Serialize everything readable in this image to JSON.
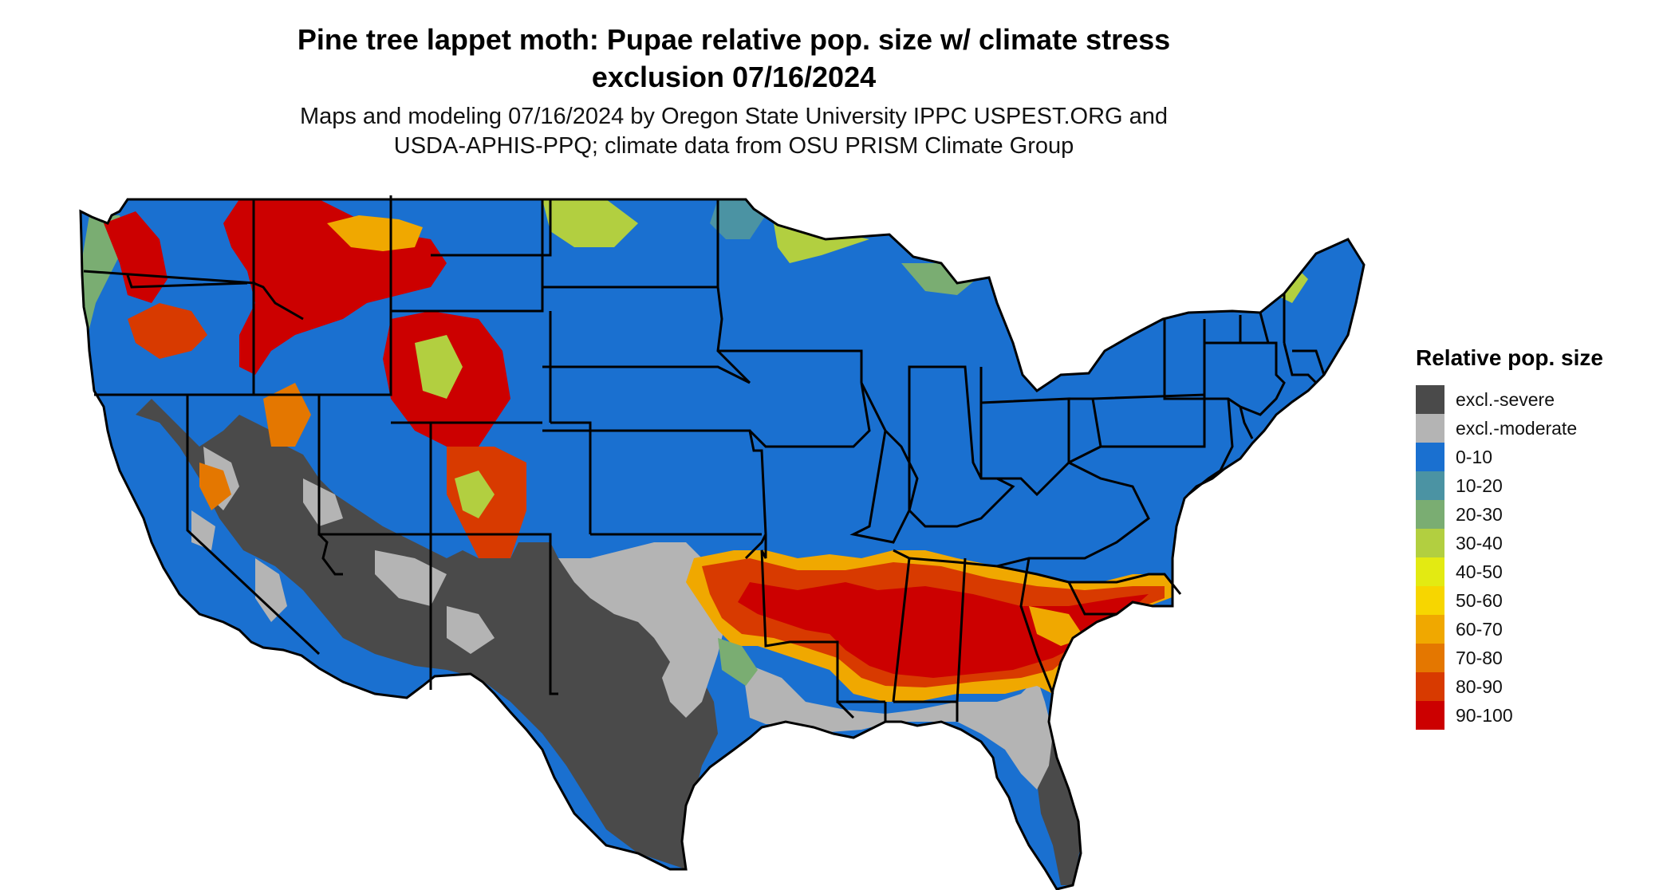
{
  "title": {
    "line1": "Pine tree lappet moth: Pupae relative pop. size w/ climate stress",
    "line2": "exclusion 07/16/2024"
  },
  "subtitle": {
    "line1": "Maps and modeling 07/16/2024 by Oregon State University IPPC USPEST.ORG and",
    "line2": "USDA-APHIS-PPQ; climate data from OSU PRISM Climate Group"
  },
  "legend": {
    "title": "Relative pop. size",
    "items": [
      {
        "label": "excl.-severe",
        "color": "#4a4a4a"
      },
      {
        "label": "excl.-moderate",
        "color": "#b4b4b4"
      },
      {
        "label": "0-10",
        "color": "#1a70d0"
      },
      {
        "label": "10-20",
        "color": "#4b93a3"
      },
      {
        "label": "20-30",
        "color": "#7aad72"
      },
      {
        "label": "30-40",
        "color": "#b2cf40"
      },
      {
        "label": "40-50",
        "color": "#e3ea12"
      },
      {
        "label": "50-60",
        "color": "#f7d600"
      },
      {
        "label": "60-70",
        "color": "#f0a800"
      },
      {
        "label": "70-80",
        "color": "#e47700"
      },
      {
        "label": "80-90",
        "color": "#d83a00"
      },
      {
        "label": "90-100",
        "color": "#cc0000"
      }
    ]
  }
}
